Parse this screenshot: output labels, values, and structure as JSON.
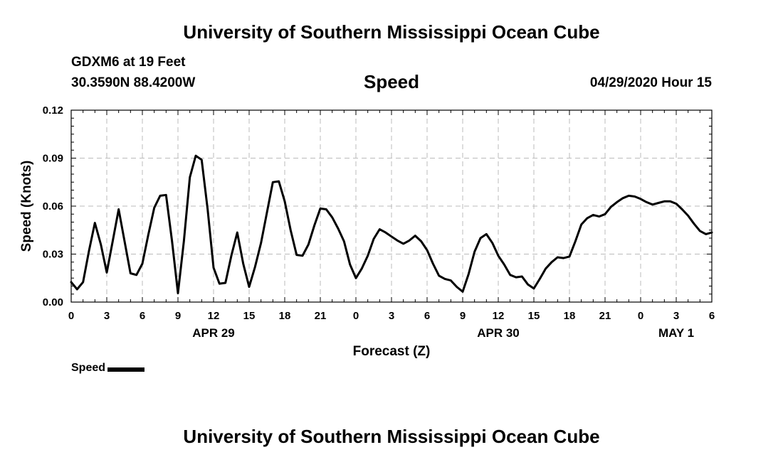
{
  "header": {
    "title": "University of Southern Mississippi Ocean Cube",
    "station": "GDXM6 at 19 Feet",
    "coords": "30.3590N 88.4200W",
    "chart_title": "Speed",
    "datetime": "04/29/2020 Hour 15"
  },
  "footer": {
    "title": "University of Southern Mississippi Ocean Cube"
  },
  "legend": {
    "label": "Speed"
  },
  "colors": {
    "line": "#000000",
    "grid": "#bbbbbb",
    "axis": "#000000"
  },
  "chart_data": {
    "type": "line",
    "title": "Speed",
    "xlabel": "Forecast (Z)",
    "ylabel": "Speed (Knots)",
    "ylim": [
      0,
      0.12
    ],
    "xlim": [
      0,
      54
    ],
    "yticks": [
      0.0,
      0.03,
      0.06,
      0.09,
      0.12
    ],
    "ytick_labels": [
      "0.00",
      "0.03",
      "0.06",
      "0.09",
      "0.12"
    ],
    "xticks": [
      0,
      3,
      6,
      9,
      12,
      15,
      18,
      21,
      24,
      27,
      30,
      33,
      36,
      39,
      42,
      45,
      48,
      51,
      54
    ],
    "xtick_labels": [
      "0",
      "3",
      "6",
      "9",
      "12",
      "15",
      "18",
      "21",
      "0",
      "3",
      "6",
      "9",
      "12",
      "15",
      "18",
      "21",
      "0",
      "3",
      "6"
    ],
    "date_labels": [
      {
        "x": 12,
        "label": "APR 29"
      },
      {
        "x": 36,
        "label": "APR 30"
      },
      {
        "x": 51,
        "label": "MAY 1"
      }
    ],
    "grid": true,
    "series": [
      {
        "name": "Speed",
        "x": [
          0,
          0.5,
          1,
          1.5,
          2,
          2.5,
          3,
          3.5,
          4,
          4.5,
          5,
          5.5,
          6,
          6.5,
          7,
          7.5,
          8,
          8.5,
          9,
          9.5,
          10,
          10.5,
          11,
          11.5,
          12,
          12.5,
          13,
          13.5,
          14,
          14.5,
          15,
          15.5,
          16,
          16.5,
          17,
          17.5,
          18,
          18.5,
          19,
          19.5,
          20,
          20.5,
          21,
          21.5,
          22,
          22.5,
          23,
          23.5,
          24,
          24.5,
          25,
          25.5,
          26,
          26.5,
          27,
          27.5,
          28,
          28.5,
          29,
          29.5,
          30,
          30.5,
          31,
          31.5,
          32,
          32.5,
          33,
          33.5,
          34,
          34.5,
          35,
          35.5,
          36,
          36.5,
          37,
          37.5,
          38,
          38.5,
          39,
          39.5,
          40,
          40.5,
          41,
          41.5,
          42,
          42.5,
          43,
          43.5,
          44,
          44.5,
          45,
          45.5,
          46,
          46.5,
          47,
          47.5,
          48,
          48.5,
          49,
          49.5,
          50,
          50.5,
          51,
          51.5,
          52,
          52.5,
          53,
          53.5,
          54
        ],
        "values": [
          0.0125,
          0.008,
          0.0125,
          0.032,
          0.0495,
          0.036,
          0.0185,
          0.038,
          0.058,
          0.038,
          0.018,
          0.017,
          0.024,
          0.042,
          0.059,
          0.0665,
          0.067,
          0.038,
          0.0055,
          0.038,
          0.078,
          0.0915,
          0.089,
          0.058,
          0.0215,
          0.0115,
          0.012,
          0.029,
          0.0435,
          0.024,
          0.0095,
          0.022,
          0.037,
          0.056,
          0.075,
          0.0755,
          0.063,
          0.045,
          0.0295,
          0.029,
          0.036,
          0.048,
          0.0585,
          0.058,
          0.053,
          0.046,
          0.038,
          0.0235,
          0.015,
          0.021,
          0.029,
          0.0395,
          0.0455,
          0.0435,
          0.041,
          0.0385,
          0.0365,
          0.0385,
          0.0415,
          0.038,
          0.0325,
          0.024,
          0.0165,
          0.0145,
          0.0135,
          0.0095,
          0.0065,
          0.0175,
          0.0315,
          0.04,
          0.0425,
          0.037,
          0.029,
          0.0235,
          0.017,
          0.0155,
          0.016,
          0.011,
          0.0085,
          0.0145,
          0.021,
          0.025,
          0.028,
          0.0275,
          0.0285,
          0.038,
          0.0485,
          0.0525,
          0.0545,
          0.0535,
          0.055,
          0.0595,
          0.0625,
          0.065,
          0.0665,
          0.066,
          0.0645,
          0.0625,
          0.061,
          0.062,
          0.063,
          0.063,
          0.0615,
          0.058,
          0.054,
          0.049,
          0.0445,
          0.0425,
          0.0435
        ]
      }
    ]
  }
}
